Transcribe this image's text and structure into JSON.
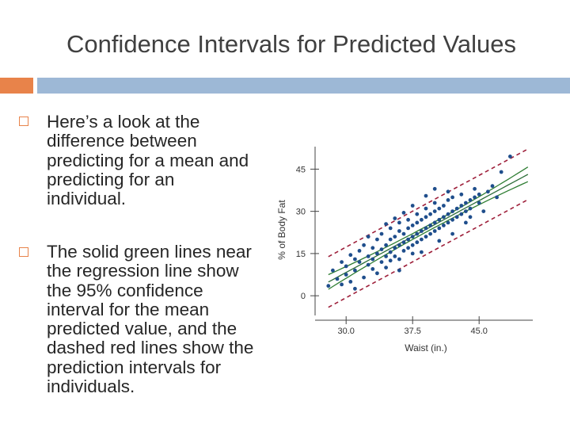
{
  "slide": {
    "title": "Confidence Intervals for Predicted Values",
    "bullets": [
      "Here’s a look at the difference between predicting for a mean and predicting for an individual.",
      "The solid green lines near the regression line show the 95% confidence interval for the mean predicted value, and the dashed red lines show the prediction intervals for individuals."
    ]
  },
  "colors": {
    "accent_orange": "#E8834A",
    "accent_blue": "#9DB8D6",
    "points": "#1F4E8C",
    "regression": "#2E6E3A",
    "confidence": "#2E7D32",
    "prediction": "#9E1F3A"
  },
  "chart_data": {
    "type": "scatter",
    "xlabel": "Waist (in.)",
    "ylabel": "% of Body Fat",
    "xticks": [
      30.0,
      37.5,
      45.0
    ],
    "xtick_labels": [
      "30.0",
      "37.5",
      "45.0"
    ],
    "yticks": [
      0,
      15,
      30,
      45
    ],
    "ytick_labels": [
      "0",
      "15",
      "30",
      "45"
    ],
    "xlim": [
      26.5,
      51.5
    ],
    "ylim": [
      -7,
      53
    ],
    "grid": false,
    "legend": "none",
    "regression_line": {
      "slope": 1.7,
      "intercept": -42.7
    },
    "confidence_band": {
      "half_width_center": 1.0,
      "half_width_edge": 2.6
    },
    "prediction_band": {
      "half_width": 9.0
    },
    "points": [
      [
        28.0,
        3.5
      ],
      [
        28.5,
        9.0
      ],
      [
        29.0,
        6.0
      ],
      [
        29.5,
        4.0
      ],
      [
        29.5,
        12.0
      ],
      [
        30.0,
        7.5
      ],
      [
        30.0,
        10.5
      ],
      [
        30.5,
        14.5
      ],
      [
        30.5,
        5.0
      ],
      [
        31.0,
        9.0
      ],
      [
        31.0,
        13.0
      ],
      [
        31.5,
        12.0
      ],
      [
        31.5,
        16.0
      ],
      [
        32.0,
        6.5
      ],
      [
        32.0,
        18.0
      ],
      [
        32.5,
        11.0
      ],
      [
        32.5,
        14.0
      ],
      [
        33.0,
        9.5
      ],
      [
        33.0,
        17.0
      ],
      [
        33.0,
        13.0
      ],
      [
        33.5,
        20.0
      ],
      [
        33.5,
        15.0
      ],
      [
        34.0,
        12.0
      ],
      [
        34.0,
        16.5
      ],
      [
        34.0,
        22.0
      ],
      [
        34.5,
        14.0
      ],
      [
        34.5,
        18.0
      ],
      [
        34.5,
        10.0
      ],
      [
        35.0,
        15.5
      ],
      [
        35.0,
        20.0
      ],
      [
        35.0,
        24.0
      ],
      [
        35.0,
        12.5
      ],
      [
        35.5,
        17.0
      ],
      [
        35.5,
        21.0
      ],
      [
        35.5,
        14.0
      ],
      [
        36.0,
        18.0
      ],
      [
        36.0,
        23.0
      ],
      [
        36.0,
        13.0
      ],
      [
        36.0,
        26.0
      ],
      [
        36.5,
        19.0
      ],
      [
        36.5,
        16.0
      ],
      [
        36.5,
        22.0
      ],
      [
        37.0,
        20.0
      ],
      [
        37.0,
        24.0
      ],
      [
        37.0,
        17.0
      ],
      [
        37.0,
        27.0
      ],
      [
        37.5,
        21.0
      ],
      [
        37.5,
        18.0
      ],
      [
        37.5,
        25.0
      ],
      [
        37.5,
        15.0
      ],
      [
        38.0,
        22.0
      ],
      [
        38.0,
        26.0
      ],
      [
        38.0,
        19.0
      ],
      [
        38.0,
        29.0
      ],
      [
        38.5,
        23.0
      ],
      [
        38.5,
        20.0
      ],
      [
        38.5,
        27.0
      ],
      [
        39.0,
        24.0
      ],
      [
        39.0,
        28.0
      ],
      [
        39.0,
        21.0
      ],
      [
        39.0,
        31.0
      ],
      [
        39.5,
        25.0
      ],
      [
        39.5,
        22.0
      ],
      [
        39.5,
        29.0
      ],
      [
        40.0,
        26.0
      ],
      [
        40.0,
        23.0
      ],
      [
        40.0,
        30.0
      ],
      [
        40.0,
        33.0
      ],
      [
        40.5,
        27.0
      ],
      [
        40.5,
        24.0
      ],
      [
        40.5,
        31.0
      ],
      [
        41.0,
        28.0
      ],
      [
        41.0,
        25.0
      ],
      [
        41.0,
        32.0
      ],
      [
        41.5,
        29.0
      ],
      [
        41.5,
        26.0
      ],
      [
        41.5,
        34.0
      ],
      [
        42.0,
        30.0
      ],
      [
        42.0,
        27.0
      ],
      [
        42.0,
        35.0
      ],
      [
        42.5,
        31.0
      ],
      [
        42.5,
        28.0
      ],
      [
        43.0,
        32.0
      ],
      [
        43.0,
        29.0
      ],
      [
        43.0,
        36.0
      ],
      [
        43.5,
        33.0
      ],
      [
        43.5,
        30.0
      ],
      [
        44.0,
        34.0
      ],
      [
        44.0,
        31.0
      ],
      [
        44.5,
        35.0
      ],
      [
        45.0,
        36.0
      ],
      [
        45.0,
        33.0
      ],
      [
        46.0,
        37.0
      ],
      [
        46.5,
        39.0
      ],
      [
        47.0,
        35.0
      ],
      [
        44.5,
        38.0
      ],
      [
        45.5,
        30.0
      ],
      [
        36.0,
        9.0
      ],
      [
        38.5,
        15.5
      ],
      [
        40.5,
        19.5
      ],
      [
        42.0,
        22.0
      ],
      [
        35.5,
        27.5
      ],
      [
        37.5,
        32.0
      ],
      [
        39.0,
        35.5
      ],
      [
        33.5,
        8.0
      ],
      [
        41.5,
        37.0
      ],
      [
        43.5,
        26.0
      ],
      [
        34.5,
        25.5
      ],
      [
        36.5,
        29.5
      ],
      [
        40.0,
        38.0
      ],
      [
        32.5,
        21.0
      ],
      [
        31.0,
        2.5
      ],
      [
        47.5,
        44.0
      ],
      [
        48.5,
        49.5
      ],
      [
        44.0,
        28.0
      ]
    ]
  }
}
